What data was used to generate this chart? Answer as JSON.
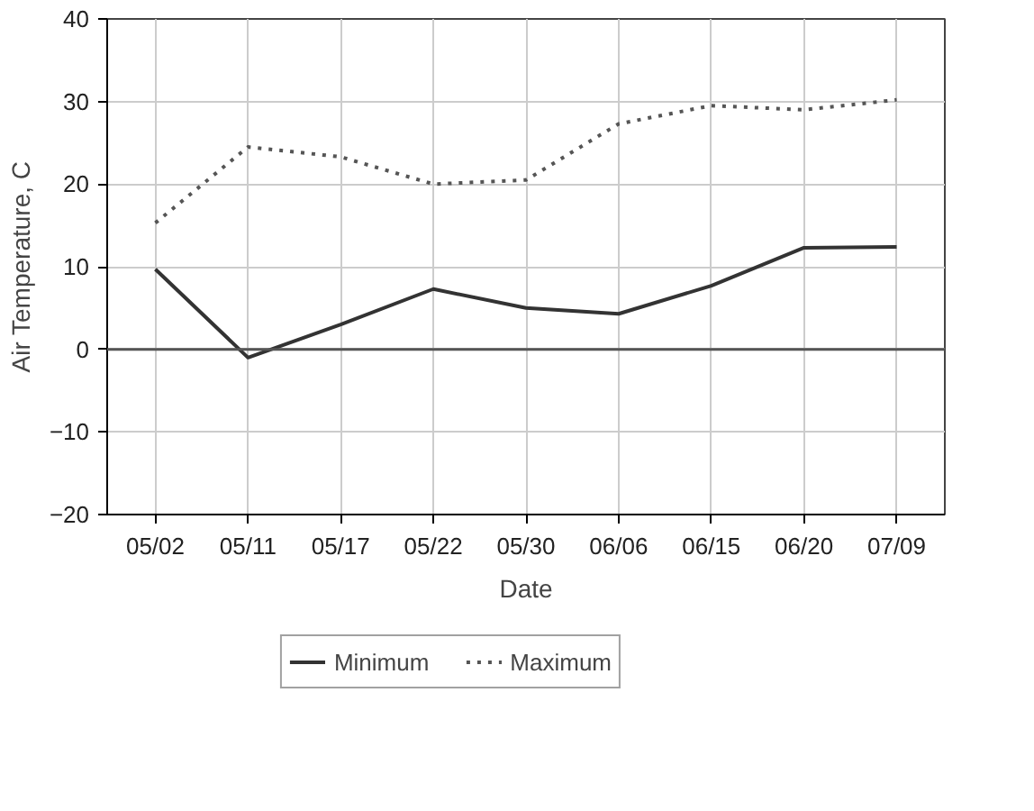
{
  "chart_data": {
    "type": "line",
    "xlabel": "Date",
    "ylabel": "Air Temperature, C",
    "categories": [
      "05/02",
      "05/11",
      "05/17",
      "05/22",
      "05/30",
      "06/06",
      "06/15",
      "06/20",
      "07/09"
    ],
    "series": [
      {
        "name": "Minimum",
        "color": "#333333",
        "line_style": "solid",
        "values": [
          9.7,
          -1,
          3,
          7.3,
          5,
          4.3,
          7.7,
          12.3,
          12.4
        ]
      },
      {
        "name": "Maximum",
        "color": "#555555",
        "line_style": "dotted",
        "values": [
          15.3,
          24.5,
          23.3,
          20,
          20.5,
          27.3,
          29.5,
          29,
          30.2
        ]
      }
    ],
    "ylim": [
      -20,
      40
    ],
    "yticks": [
      -20,
      -10,
      0,
      10,
      20,
      30,
      40
    ],
    "grid": true,
    "legend": "bottom",
    "marker": "none",
    "ref_lines": [
      {
        "axis": "y",
        "value": 0,
        "color": "#555555"
      }
    ]
  }
}
